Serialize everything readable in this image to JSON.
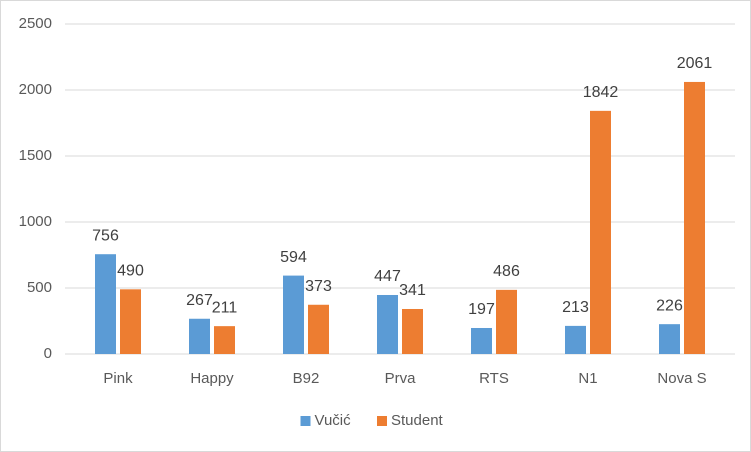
{
  "chart_data": {
    "type": "bar",
    "categories": [
      "Pink",
      "Happy",
      "B92",
      "Prva",
      "RTS",
      "N1",
      "Nova S"
    ],
    "series": [
      {
        "name": "Vučić",
        "color": "#5b9bd5",
        "values": [
          756,
          267,
          594,
          447,
          197,
          213,
          226
        ]
      },
      {
        "name": "Student",
        "color": "#ed7d31",
        "values": [
          490,
          211,
          373,
          341,
          486,
          1842,
          2061
        ]
      }
    ],
    "ylim": [
      0,
      2500
    ],
    "yticks": [
      0,
      500,
      1000,
      1500,
      2000,
      2500
    ],
    "grid": true,
    "legend": "bottom"
  }
}
